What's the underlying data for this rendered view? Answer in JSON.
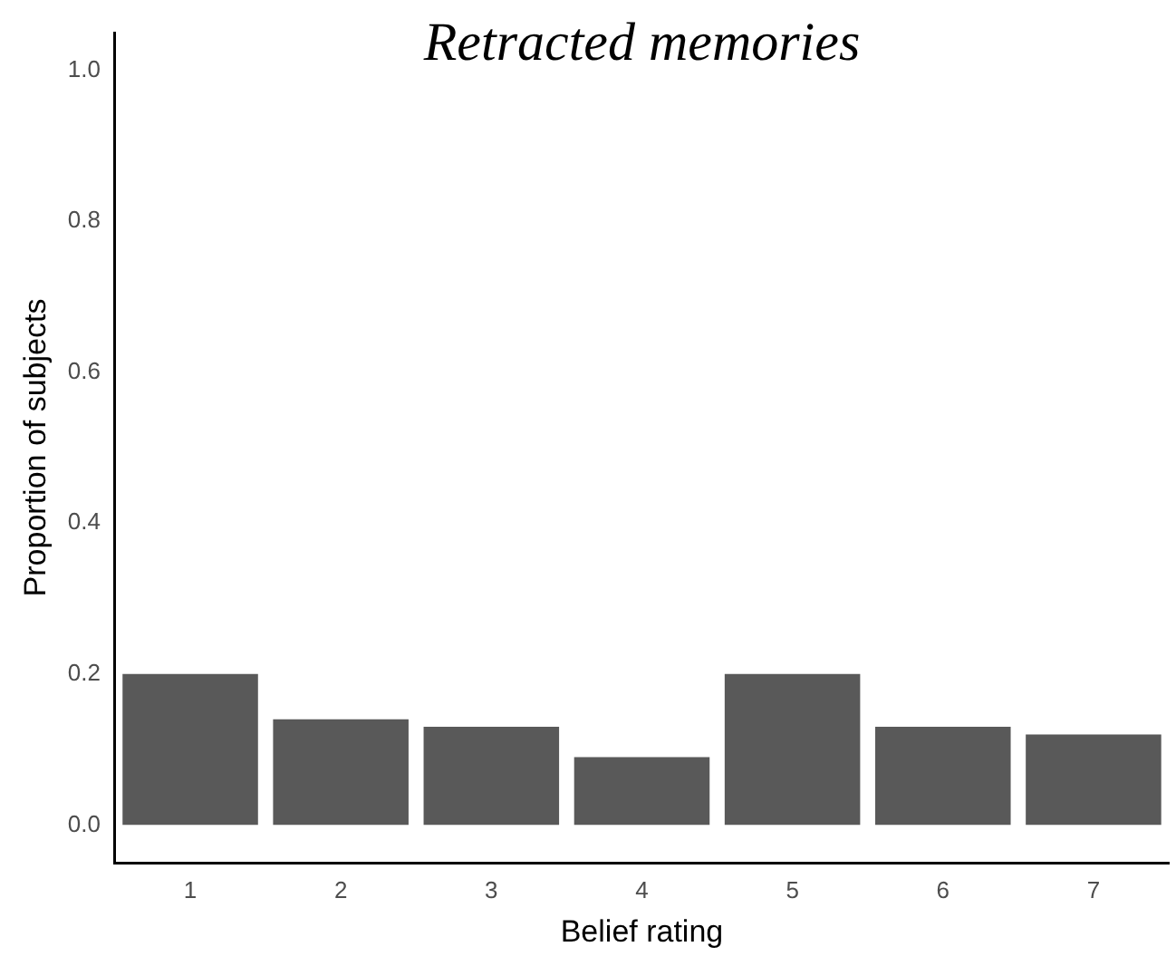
{
  "chart_data": {
    "type": "bar",
    "title": "Retracted memories",
    "xlabel": "Belief rating",
    "ylabel": "Proportion of subjects",
    "categories": [
      "1",
      "2",
      "3",
      "4",
      "5",
      "6",
      "7"
    ],
    "values": [
      0.2,
      0.14,
      0.13,
      0.09,
      0.2,
      0.13,
      0.12
    ],
    "color": "#595959",
    "ylim": [
      -0.05,
      1.05
    ],
    "yticks": [
      {
        "value": 0,
        "label": "0.0"
      },
      {
        "value": 0.2,
        "label": "0.2"
      },
      {
        "value": 0.4,
        "label": "0.4"
      },
      {
        "value": 0.6,
        "label": "0.6"
      },
      {
        "value": 0.8,
        "label": "0.8"
      },
      {
        "value": 1,
        "label": "1.0"
      }
    ],
    "grid": false
  }
}
